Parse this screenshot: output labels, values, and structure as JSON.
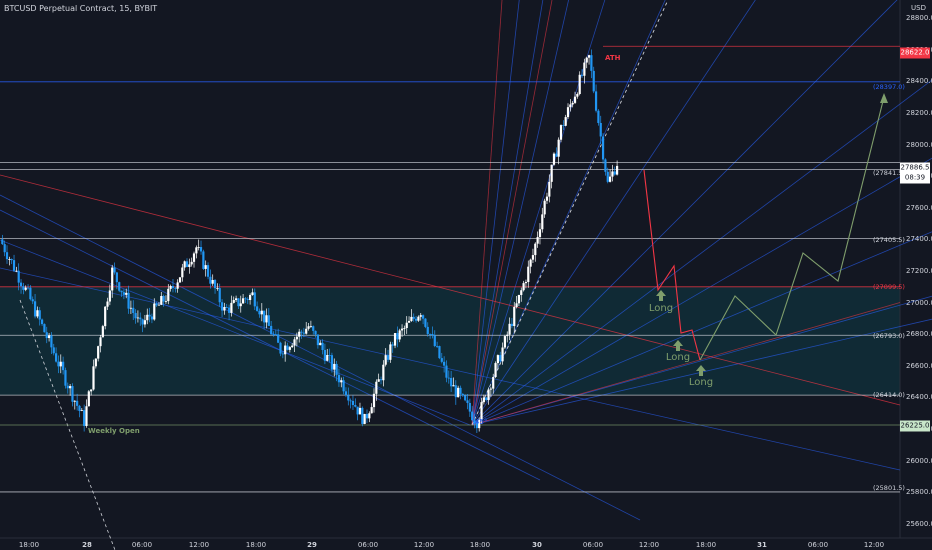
{
  "header": {
    "symbol_line": "BTCUSD Perpetual Contract, 15, BYBIT",
    "currency": "USD"
  },
  "price_axis": {
    "ticks": [
      "28800.0",
      "28600.0",
      "28400.0",
      "28200.0",
      "28000.0",
      "27800.0",
      "27600.0",
      "27400.0",
      "27200.0",
      "27000.0",
      "26800.0",
      "26600.0",
      "26400.0",
      "26200.0",
      "26000.0",
      "25800.0",
      "25600.0"
    ],
    "last_price": "27886.5",
    "countdown": "08:39",
    "ath_badge": "28622.0",
    "open_badge": "26225.0"
  },
  "time_axis": {
    "labels": [
      "18:00",
      "28",
      "06:00",
      "12:00",
      "18:00",
      "29",
      "06:00",
      "12:00",
      "18:00",
      "30",
      "06:00",
      "12:00",
      "18:00",
      "31",
      "06:00",
      "12:00"
    ]
  },
  "levels": {
    "l28397": "(28397.0)",
    "l27841": "(27841.5)",
    "l27405": "(27405.5)",
    "l27099": "(27099.5)",
    "l26793": "(26793.0)",
    "l26414": "(26414.0)",
    "l25801": "(25801.5)"
  },
  "annotations": {
    "ath": "ATH",
    "weekly_open": "Weekly Open",
    "angle": "45°",
    "long1": "Long",
    "long2": "Long",
    "long3": "Long"
  },
  "colors": {
    "background": "#131722",
    "up": "#ffffff",
    "down": "#2196f3",
    "red_line": "#f23645",
    "green_line": "#7f9e6c",
    "zone": "#0f3a45"
  },
  "chart_data": {
    "type": "candlestick",
    "title": "BTCUSD Perpetual Contract, 15, BYBIT",
    "horizontal_levels": [
      28622.0,
      28397.0,
      27841.5,
      27405.5,
      27099.5,
      26793.0,
      26414.0,
      26225.0,
      25801.5
    ],
    "last_price": 27886.5,
    "zone": [
      26414.0,
      27099.5
    ],
    "approx_path": [
      {
        "t": "27 15:00",
        "p": 27400
      },
      {
        "t": "27 18:00",
        "p": 27050
      },
      {
        "t": "27 21:00",
        "p": 26650
      },
      {
        "t": "28 00:00",
        "p": 26250
      },
      {
        "t": "28 03:00",
        "p": 27200
      },
      {
        "t": "28 06:00",
        "p": 26850
      },
      {
        "t": "28 09:00",
        "p": 27050
      },
      {
        "t": "28 12:00",
        "p": 27350
      },
      {
        "t": "28 15:00",
        "p": 26950
      },
      {
        "t": "28 18:00",
        "p": 27050
      },
      {
        "t": "28 21:00",
        "p": 26700
      },
      {
        "t": "29 00:00",
        "p": 26850
      },
      {
        "t": "29 03:00",
        "p": 26550
      },
      {
        "t": "29 06:00",
        "p": 26250
      },
      {
        "t": "29 09:00",
        "p": 26750
      },
      {
        "t": "29 12:00",
        "p": 26950
      },
      {
        "t": "29 15:00",
        "p": 26500
      },
      {
        "t": "29 18:00",
        "p": 26250
      },
      {
        "t": "29 21:00",
        "p": 26750
      },
      {
        "t": "30 00:00",
        "p": 27300
      },
      {
        "t": "30 03:00",
        "p": 28100
      },
      {
        "t": "30 06:00",
        "p": 28550
      },
      {
        "t": "30 08:00",
        "p": 27750
      },
      {
        "t": "30 09:00",
        "p": 27886.5
      }
    ]
  }
}
